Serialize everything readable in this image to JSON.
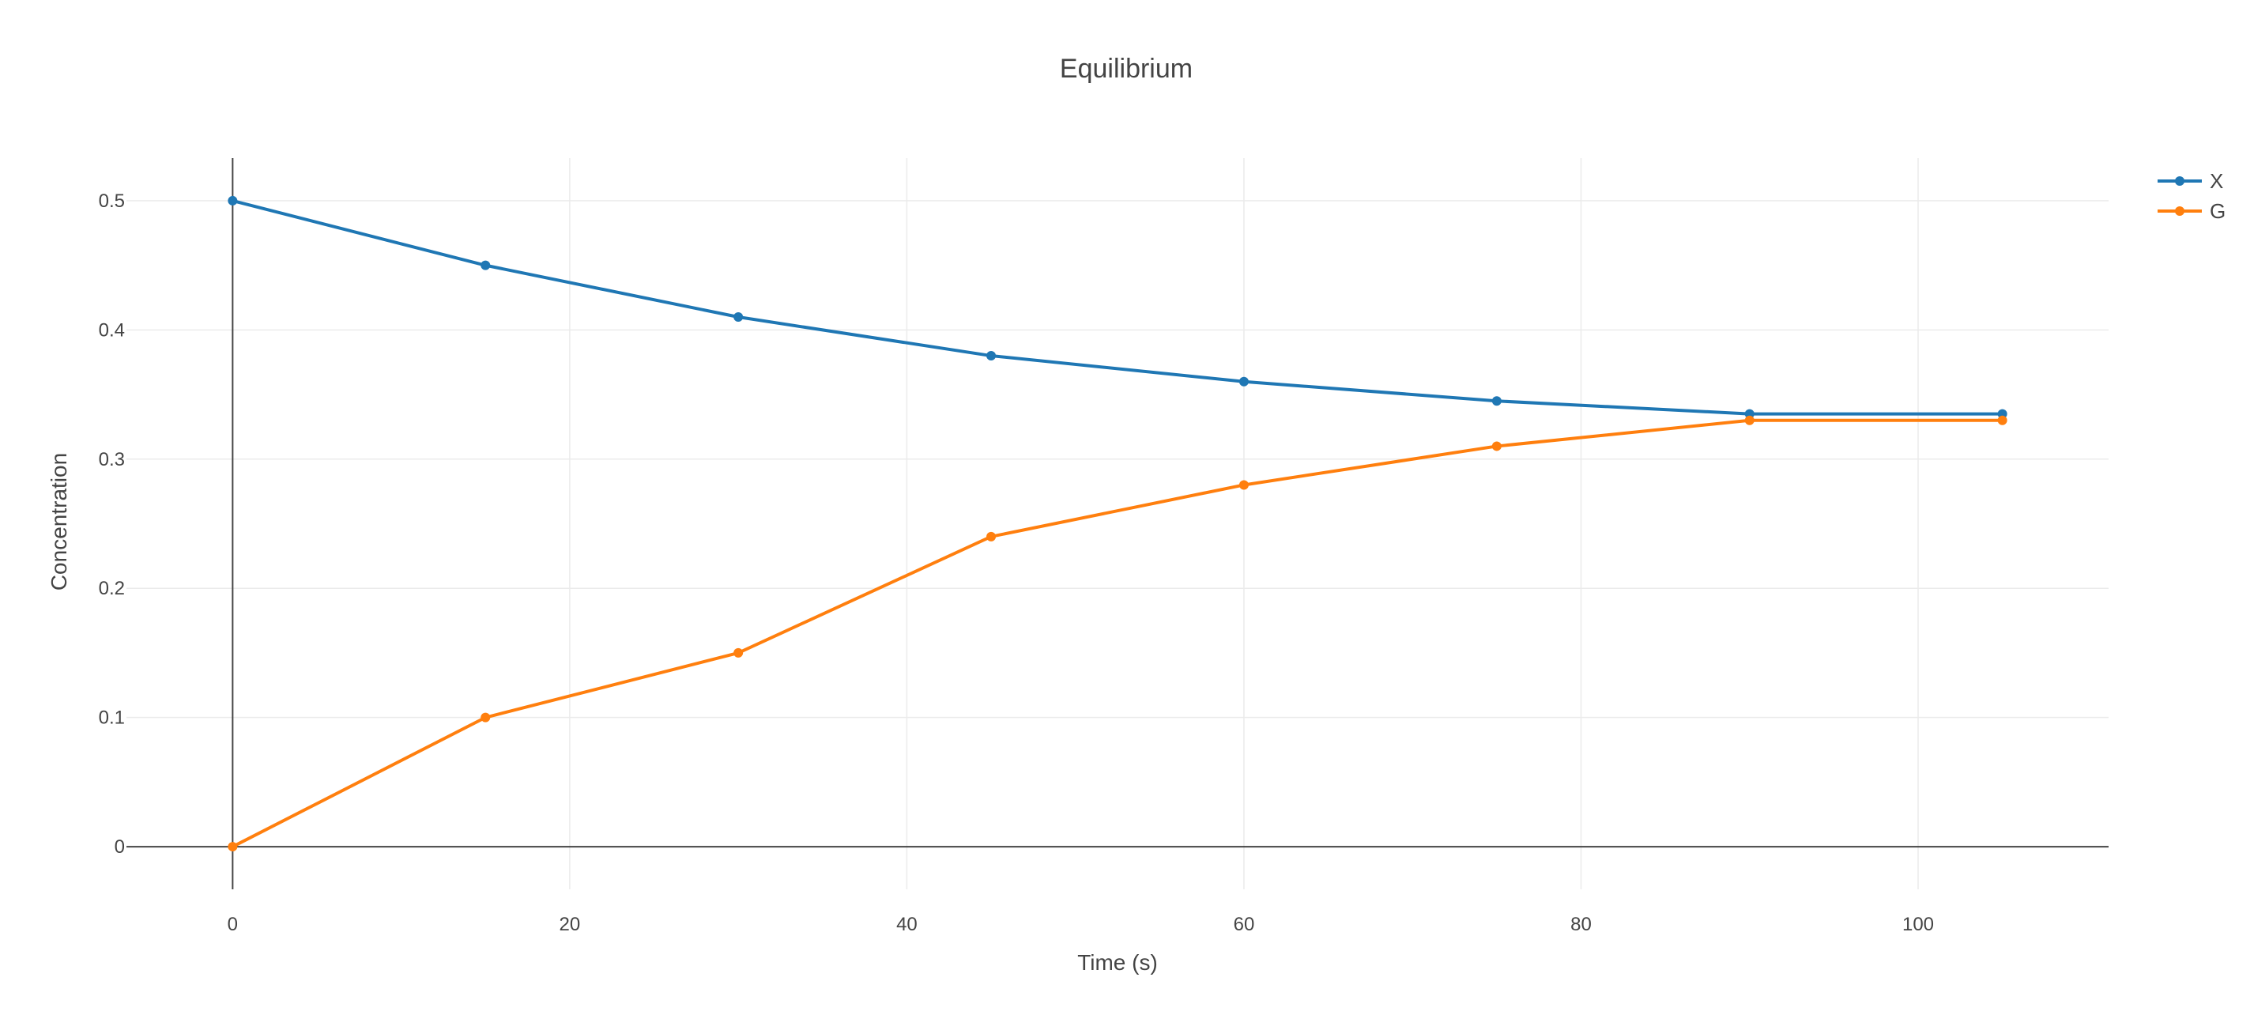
{
  "chart_data": {
    "type": "line",
    "title": "Equilibrium",
    "xlabel": "Time (s)",
    "ylabel": "Concentration",
    "x": [
      0,
      15,
      30,
      45,
      60,
      75,
      90,
      105
    ],
    "series": [
      {
        "name": "X",
        "color": "#1f77b4",
        "values": [
          0.5,
          0.45,
          0.41,
          0.38,
          0.36,
          0.345,
          0.335,
          0.335
        ]
      },
      {
        "name": "G",
        "color": "#ff7f0e",
        "values": [
          0.0,
          0.1,
          0.15,
          0.24,
          0.28,
          0.31,
          0.33,
          0.33
        ]
      }
    ],
    "xlim": [
      -6.3,
      111.3
    ],
    "ylim": [
      -0.033,
      0.533
    ],
    "xticks": [
      0,
      20,
      40,
      60,
      80,
      100
    ],
    "xtick_labels": [
      "0",
      "20",
      "40",
      "60",
      "80",
      "100"
    ],
    "yticks": [
      0,
      0.1,
      0.2,
      0.3,
      0.4,
      0.5
    ],
    "ytick_labels": [
      "0",
      "0.1",
      "0.2",
      "0.3",
      "0.4",
      "0.5"
    ],
    "grid": true,
    "legend_position": "top-right"
  }
}
